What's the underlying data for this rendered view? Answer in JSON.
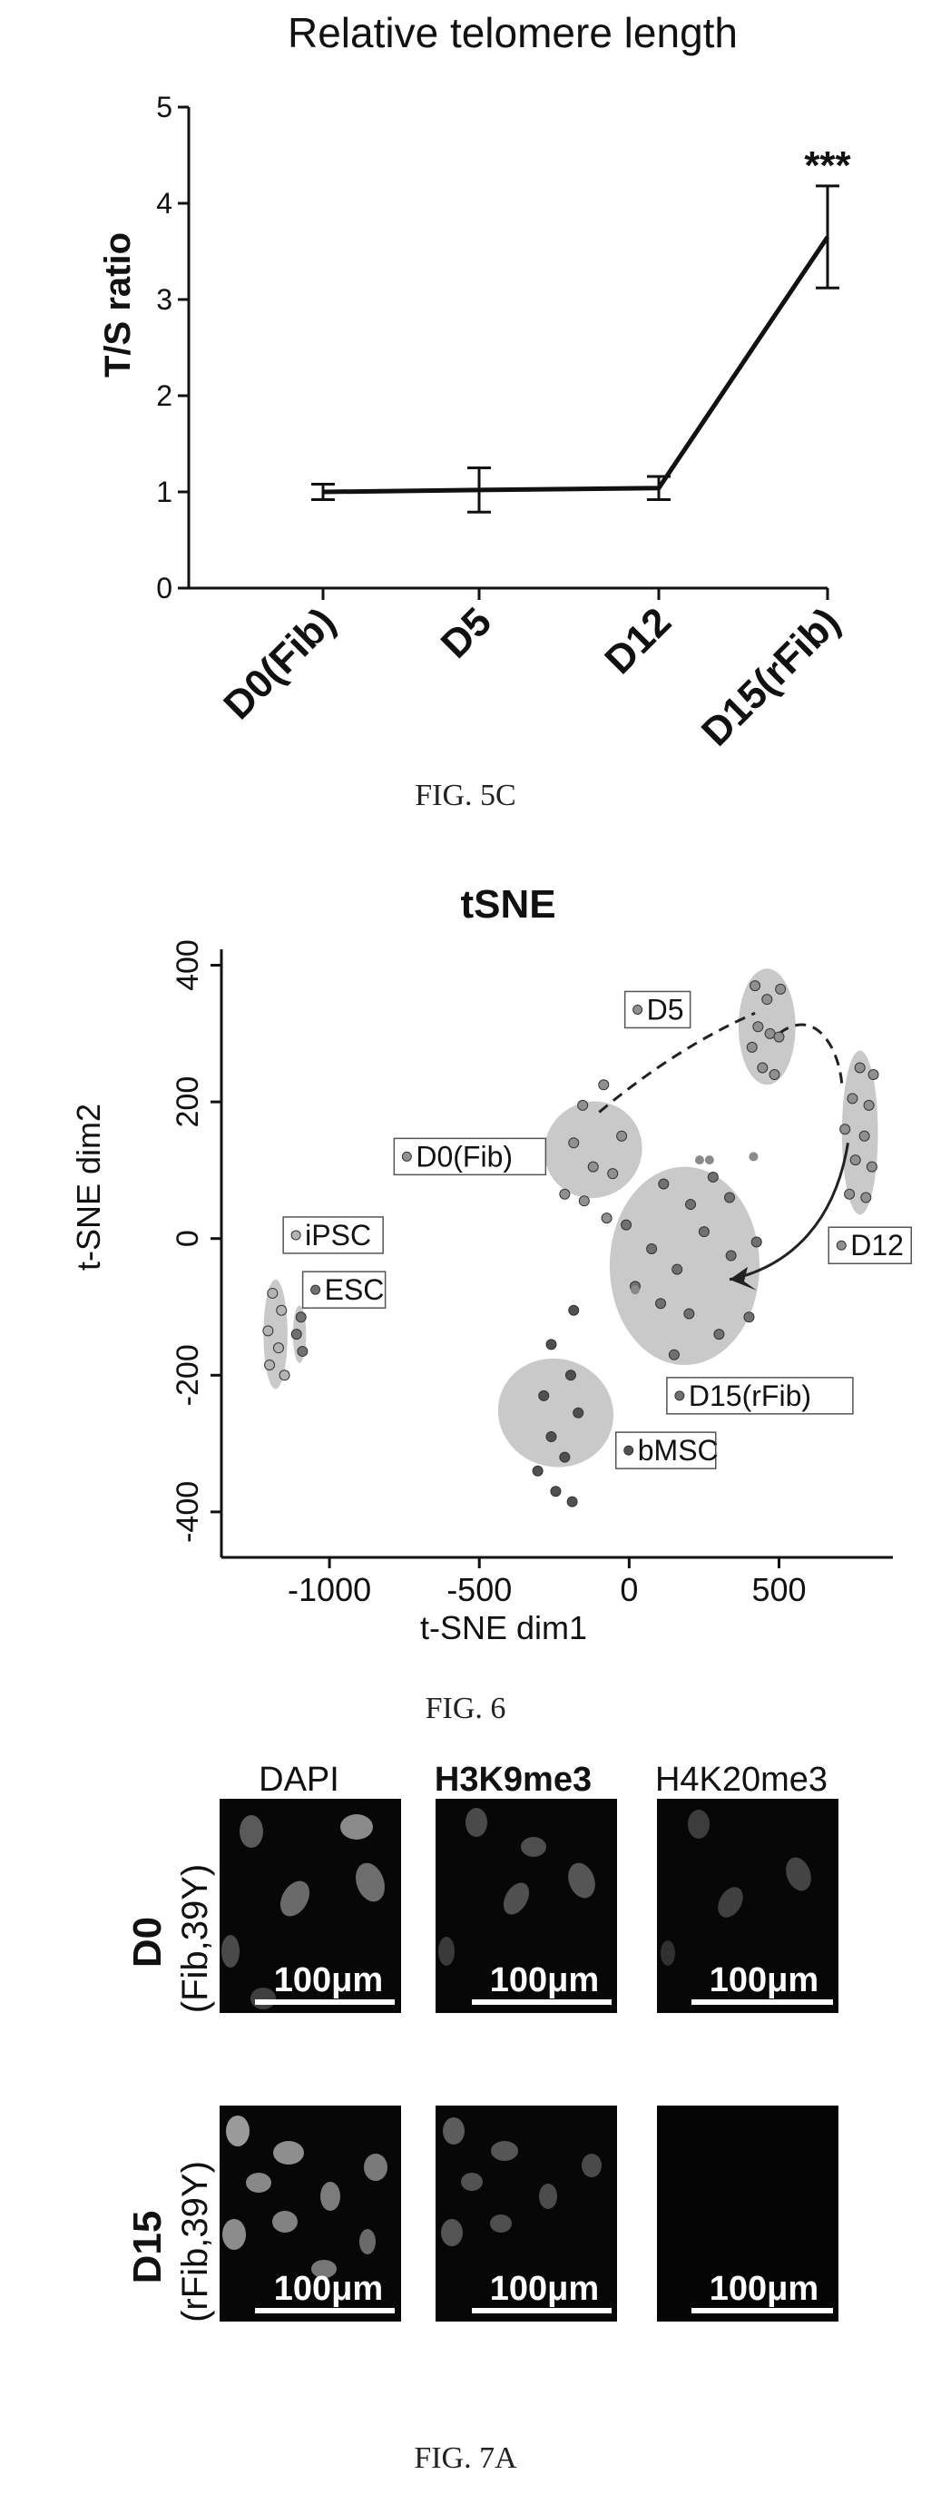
{
  "figures": [
    {
      "caption": "FIG. 5C",
      "chart_data": {
        "type": "line",
        "title": "Relative telomere length",
        "ylabel": "T/S ratio",
        "xlabel": "",
        "categories": [
          "D0(Fib)",
          "D5",
          "D12",
          "D15(rFib)"
        ],
        "series": [
          {
            "values": [
              1.0,
              1.02,
              1.04,
              3.65
            ],
            "error": [
              0.08,
              0.23,
              0.12,
              0.53
            ]
          }
        ],
        "ylim": [
          0,
          5
        ],
        "yticks": [
          "0",
          "1",
          "2",
          "3",
          "4",
          "5"
        ],
        "annotations": [
          {
            "category": "D15(rFib)",
            "text": "***"
          }
        ],
        "grid": false,
        "legend": "none"
      }
    },
    {
      "caption": "FIG. 6",
      "chart_data": {
        "type": "scatter",
        "title": "tSNE",
        "xlabel": "t-SNE dim1",
        "ylabel": "t-SNE dim2",
        "xlim": [
          -1300,
          880
        ],
        "ylim": [
          -440,
          410
        ],
        "xticks": [
          "-1000",
          "-500",
          "0",
          "500"
        ],
        "yticks": [
          "400",
          "200",
          "0",
          "-200",
          "-400"
        ],
        "groups": [
          {
            "label": "D5",
            "color": "#909090",
            "points": [
              [
                420,
                370
              ],
              [
                460,
                350
              ],
              [
                505,
                365
              ],
              [
                430,
                310
              ],
              [
                470,
                300
              ],
              [
                500,
                295
              ],
              [
                445,
                250
              ],
              [
                485,
                240
              ],
              [
                410,
                280
              ]
            ]
          },
          {
            "label": "D0(Fib)",
            "color": "#909090",
            "points": [
              [
                -155,
                195
              ],
              [
                -85,
                225
              ],
              [
                -25,
                150
              ],
              [
                -185,
                140
              ],
              [
                -120,
                105
              ],
              [
                -55,
                95
              ],
              [
                -215,
                65
              ],
              [
                -150,
                55
              ],
              [
                -75,
                30
              ]
            ]
          },
          {
            "label": "D12",
            "color": "#909090",
            "points": [
              [
                770,
                250
              ],
              [
                815,
                240
              ],
              [
                745,
                205
              ],
              [
                800,
                195
              ],
              [
                720,
                160
              ],
              [
                785,
                150
              ],
              [
                755,
                115
              ],
              [
                810,
                105
              ],
              [
                735,
                65
              ],
              [
                790,
                60
              ]
            ]
          },
          {
            "label": "D15(rFib)",
            "color": "#707070",
            "points": [
              [
                115,
                80
              ],
              [
                205,
                50
              ],
              [
                280,
                90
              ],
              [
                335,
                60
              ],
              [
                -10,
                20
              ],
              [
                75,
                -15
              ],
              [
                160,
                -45
              ],
              [
                250,
                10
              ],
              [
                340,
                -25
              ],
              [
                425,
                -5
              ],
              [
                20,
                -70
              ],
              [
                105,
                -95
              ],
              [
                200,
                -110
              ],
              [
                300,
                -140
              ],
              [
                400,
                -115
              ],
              [
                150,
                -170
              ]
            ]
          },
          {
            "label": "bMSC",
            "color": "#505050",
            "points": [
              [
                -185,
                -105
              ],
              [
                -260,
                -155
              ],
              [
                -195,
                -200
              ],
              [
                -285,
                -230
              ],
              [
                -170,
                -255
              ],
              [
                -260,
                -290
              ],
              [
                -215,
                -320
              ],
              [
                -305,
                -340
              ],
              [
                -245,
                -370
              ],
              [
                -190,
                -385
              ]
            ]
          },
          {
            "label": "iPSC",
            "color": "#b4b4b4",
            "points": [
              [
                -1190,
                -80
              ],
              [
                -1160,
                -105
              ],
              [
                -1205,
                -135
              ],
              [
                -1170,
                -160
              ],
              [
                -1200,
                -185
              ],
              [
                -1150,
                -200
              ]
            ]
          },
          {
            "label": "ESC",
            "color": "#707070",
            "points": [
              [
                -1095,
                -115
              ],
              [
                -1110,
                -140
              ],
              [
                -1090,
                -165
              ]
            ]
          }
        ],
        "stray_points": [
          [
            20,
            -75
          ],
          [
            235,
            115
          ],
          [
            268,
            115
          ],
          [
            415,
            120
          ]
        ],
        "legend": "labels beside clusters"
      }
    },
    {
      "caption": "FIG. 7A",
      "columns": [
        "DAPI",
        "H3K9me3",
        "H4K20me3"
      ],
      "rows": [
        {
          "label_line1": "D0",
          "label_line2": "(Fib,39Y)"
        },
        {
          "label_line1": "D15",
          "label_line2": "(rFib,39Y)"
        }
      ],
      "scale_bar": "100μm"
    }
  ]
}
